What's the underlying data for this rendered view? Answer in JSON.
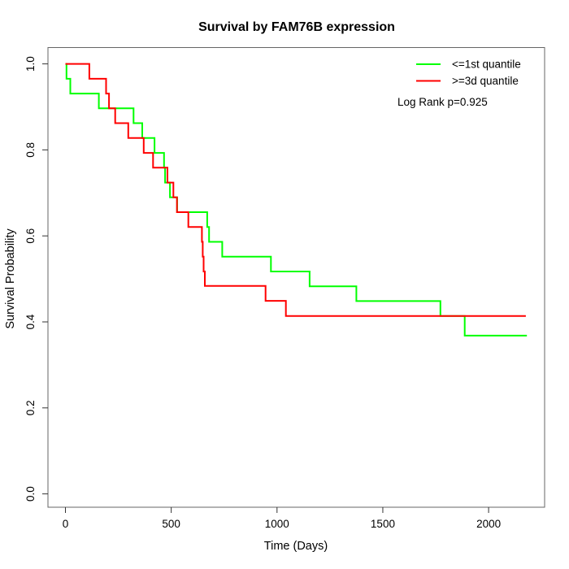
{
  "chart_data": {
    "type": "line",
    "subtype": "kaplan-meier-step",
    "title": "Survival by FAM76B expression",
    "xlabel": "Time (Days)",
    "ylabel": "Survival Probability",
    "xlim": [
      0,
      2190
    ],
    "ylim": [
      0.0,
      1.0
    ],
    "grid": false,
    "legend_position": "top-right",
    "annotation": "Log Rank p=0.925",
    "x_ticks": [
      {
        "v": 0,
        "label": "0"
      },
      {
        "v": 500,
        "label": "500"
      },
      {
        "v": 1000,
        "label": "1000"
      },
      {
        "v": 1500,
        "label": "1500"
      },
      {
        "v": 2000,
        "label": "2000"
      }
    ],
    "y_ticks": [
      {
        "v": 0.0,
        "label": "0.0"
      },
      {
        "v": 0.2,
        "label": "0.2"
      },
      {
        "v": 0.4,
        "label": "0.4"
      },
      {
        "v": 0.6,
        "label": "0.6"
      },
      {
        "v": 0.8,
        "label": "0.8"
      },
      {
        "v": 1.0,
        "label": "1.0"
      }
    ],
    "series": [
      {
        "name": "<=1st quantile",
        "color": "#00ff00",
        "end_time": 2181,
        "points": [
          [
            0,
            1.0
          ],
          [
            5,
            0.9655
          ],
          [
            23,
            0.931
          ],
          [
            158,
            0.8966
          ],
          [
            322,
            0.8621
          ],
          [
            363,
            0.8276
          ],
          [
            421,
            0.7931
          ],
          [
            466,
            0.7586
          ],
          [
            471,
            0.7241
          ],
          [
            494,
            0.6897
          ],
          [
            528,
            0.6552
          ],
          [
            670,
            0.6207
          ],
          [
            679,
            0.5862
          ],
          [
            741,
            0.5517
          ],
          [
            971,
            0.5172
          ],
          [
            1154,
            0.4828
          ],
          [
            1375,
            0.4483
          ],
          [
            1772,
            0.4138
          ],
          [
            1887,
            0.368
          ]
        ]
      },
      {
        "name": ">=3d quantile",
        "color": "#ff0000",
        "end_time": 2176,
        "points": [
          [
            0,
            1.0
          ],
          [
            113,
            0.9655
          ],
          [
            192,
            0.931
          ],
          [
            206,
            0.8966
          ],
          [
            235,
            0.8621
          ],
          [
            297,
            0.8276
          ],
          [
            370,
            0.7931
          ],
          [
            414,
            0.7586
          ],
          [
            482,
            0.7241
          ],
          [
            510,
            0.6897
          ],
          [
            527,
            0.6552
          ],
          [
            581,
            0.6207
          ],
          [
            645,
            0.5862
          ],
          [
            649,
            0.5517
          ],
          [
            653,
            0.5172
          ],
          [
            659,
            0.4838
          ],
          [
            946,
            0.449
          ],
          [
            1042,
            0.4138
          ]
        ]
      }
    ]
  }
}
